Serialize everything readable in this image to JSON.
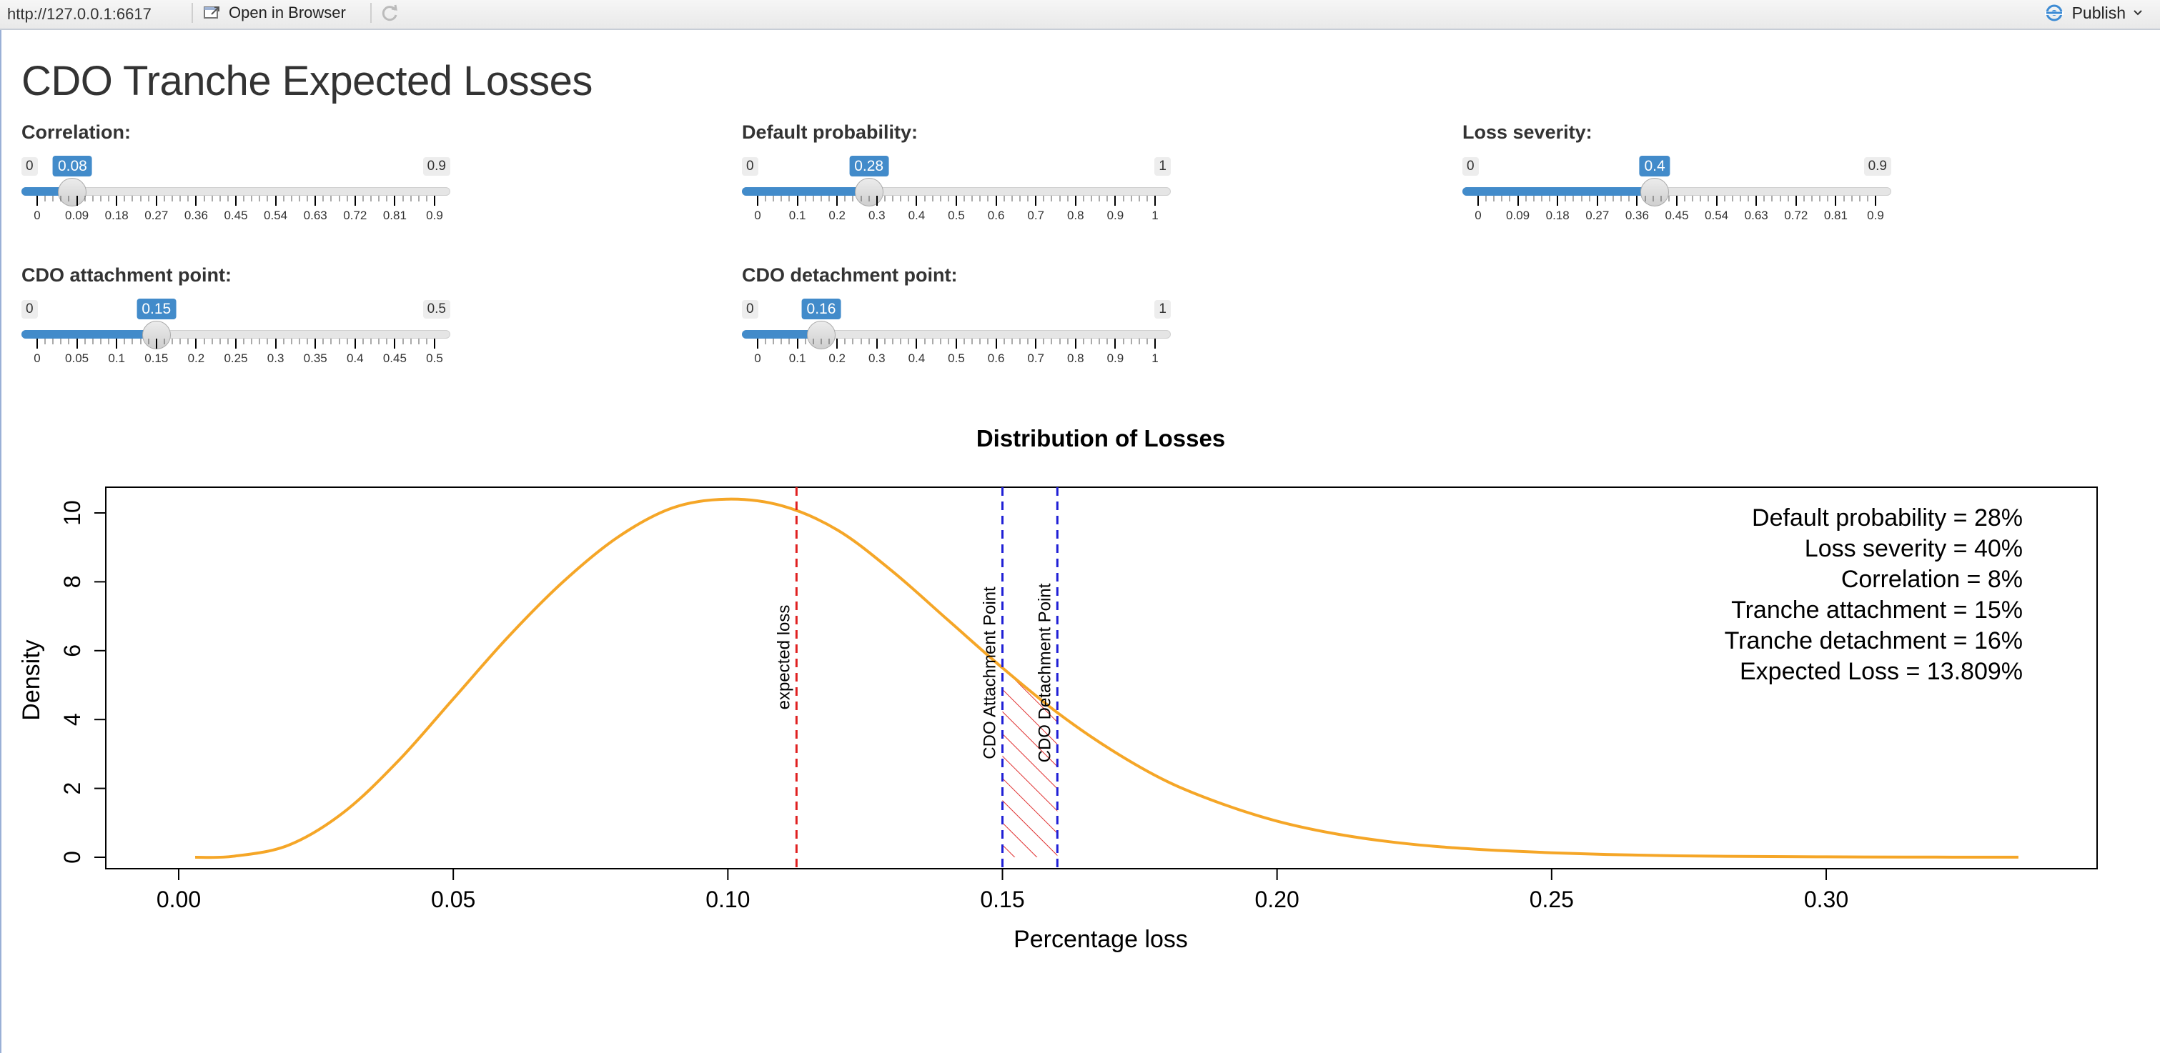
{
  "toolbar": {
    "url": "http://127.0.0.1:6617",
    "open_in_browser": "Open in Browser",
    "publish": "Publish"
  },
  "page": {
    "title": "CDO Tranche Expected Losses"
  },
  "sliders": [
    {
      "id": "correlation",
      "label": "Correlation:",
      "min": 0,
      "max": 0.9,
      "value": 0.08,
      "min_label": "0",
      "max_label": "0.9",
      "value_label": "0.08",
      "major_ticks": [
        "0",
        "0.09",
        "0.18",
        "0.27",
        "0.36",
        "0.45",
        "0.54",
        "0.63",
        "0.72",
        "0.81",
        "0.9"
      ]
    },
    {
      "id": "default-probability",
      "label": "Default probability:",
      "min": 0,
      "max": 1,
      "value": 0.28,
      "min_label": "0",
      "max_label": "1",
      "value_label": "0.28",
      "major_ticks": [
        "0",
        "0.1",
        "0.2",
        "0.3",
        "0.4",
        "0.5",
        "0.6",
        "0.7",
        "0.8",
        "0.9",
        "1"
      ]
    },
    {
      "id": "loss-severity",
      "label": "Loss severity:",
      "min": 0,
      "max": 0.9,
      "value": 0.4,
      "min_label": "0",
      "max_label": "0.9",
      "value_label": "0.4",
      "major_ticks": [
        "0",
        "0.09",
        "0.18",
        "0.27",
        "0.36",
        "0.45",
        "0.54",
        "0.63",
        "0.72",
        "0.81",
        "0.9"
      ]
    },
    {
      "id": "attachment-point",
      "label": "CDO attachment point:",
      "min": 0,
      "max": 0.5,
      "value": 0.15,
      "min_label": "0",
      "max_label": "0.5",
      "value_label": "0.15",
      "major_ticks": [
        "0",
        "0.05",
        "0.1",
        "0.15",
        "0.2",
        "0.25",
        "0.3",
        "0.35",
        "0.4",
        "0.45",
        "0.5"
      ]
    },
    {
      "id": "detachment-point",
      "label": "CDO detachment point:",
      "min": 0,
      "max": 1,
      "value": 0.16,
      "min_label": "0",
      "max_label": "1",
      "value_label": "0.16",
      "major_ticks": [
        "0",
        "0.1",
        "0.2",
        "0.3",
        "0.4",
        "0.5",
        "0.6",
        "0.7",
        "0.8",
        "0.9",
        "1"
      ]
    }
  ],
  "chart_data": {
    "type": "line",
    "title": "Distribution of Losses",
    "xlabel": "Percentage loss",
    "ylabel": "Density",
    "xlim": [
      0.0,
      0.335
    ],
    "ylim": [
      0,
      10.5
    ],
    "x_ticks": [
      "0.00",
      "0.05",
      "0.10",
      "0.15",
      "0.20",
      "0.25",
      "0.30"
    ],
    "y_ticks": [
      "0",
      "2",
      "4",
      "6",
      "8",
      "10"
    ],
    "series": [
      {
        "color": "#f5a627",
        "x": [
          0.003,
          0.01,
          0.02,
          0.03,
          0.04,
          0.05,
          0.06,
          0.07,
          0.08,
          0.09,
          0.1,
          0.11,
          0.12,
          0.13,
          0.14,
          0.15,
          0.16,
          0.17,
          0.18,
          0.19,
          0.2,
          0.21,
          0.22,
          0.23,
          0.24,
          0.25,
          0.26,
          0.27,
          0.28,
          0.3,
          0.32,
          0.335
        ],
        "y": [
          0.0,
          0.03,
          0.35,
          1.3,
          2.8,
          4.6,
          6.4,
          8.0,
          9.3,
          10.15,
          10.4,
          10.2,
          9.5,
          8.3,
          6.9,
          5.5,
          4.2,
          3.1,
          2.2,
          1.55,
          1.05,
          0.7,
          0.46,
          0.3,
          0.2,
          0.13,
          0.08,
          0.05,
          0.03,
          0.012,
          0.004,
          0.002
        ]
      }
    ],
    "vlines": [
      {
        "x": 0.1125,
        "color": "#e02020",
        "label": "expected loss"
      },
      {
        "x": 0.15,
        "color": "#1f1fd6",
        "label": "CDO Attachment Point"
      },
      {
        "x": 0.16,
        "color": "#1f1fd6",
        "label": "CDO Detachment Point"
      }
    ],
    "shaded_region": {
      "x_from": 0.15,
      "x_to": 0.16,
      "color": "#e03030"
    },
    "annotations": [
      "Default probability = 28%",
      "Loss severity = 40%",
      "Correlation = 8%",
      "Tranche attachment = 15%",
      "Tranche detachment = 16%",
      "Expected Loss = 13.809%"
    ]
  }
}
